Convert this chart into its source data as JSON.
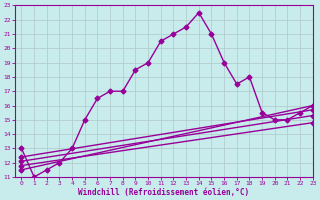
{
  "xlabel": "Windchill (Refroidissement éolien,°C)",
  "bg_color": "#c8ecec",
  "line_color": "#990099",
  "grid_color": "#b0c8c8",
  "xlim": [
    -0.5,
    23
  ],
  "ylim": [
    11,
    23
  ],
  "xticks": [
    0,
    1,
    2,
    3,
    4,
    5,
    6,
    7,
    8,
    9,
    10,
    11,
    12,
    13,
    14,
    15,
    16,
    17,
    18,
    19,
    20,
    21,
    22,
    23
  ],
  "yticks": [
    11,
    12,
    13,
    14,
    15,
    16,
    17,
    18,
    19,
    20,
    21,
    22,
    23
  ],
  "main_series": {
    "x": [
      0,
      1,
      2,
      3,
      4,
      5,
      6,
      7,
      8,
      9,
      10,
      11,
      12,
      13,
      14,
      15,
      16,
      17,
      18,
      19,
      20,
      21,
      22,
      23
    ],
    "y": [
      13,
      11,
      11.5,
      12,
      13,
      15,
      16.5,
      17,
      17,
      18.5,
      19,
      20.5,
      21,
      21.5,
      22.5,
      21,
      19,
      17.5,
      18,
      15.5,
      15,
      15,
      15.5,
      16
    ]
  },
  "diag_series": [
    {
      "x": [
        0,
        23
      ],
      "y": [
        11.5,
        16.0
      ]
    },
    {
      "x": [
        0,
        23
      ],
      "y": [
        11.8,
        14.8
      ]
    },
    {
      "x": [
        0,
        23
      ],
      "y": [
        12.1,
        15.3
      ]
    },
    {
      "x": [
        0,
        23
      ],
      "y": [
        12.4,
        15.7
      ]
    }
  ],
  "marker": "D",
  "markersize": 2.5,
  "linewidth": 1.0
}
